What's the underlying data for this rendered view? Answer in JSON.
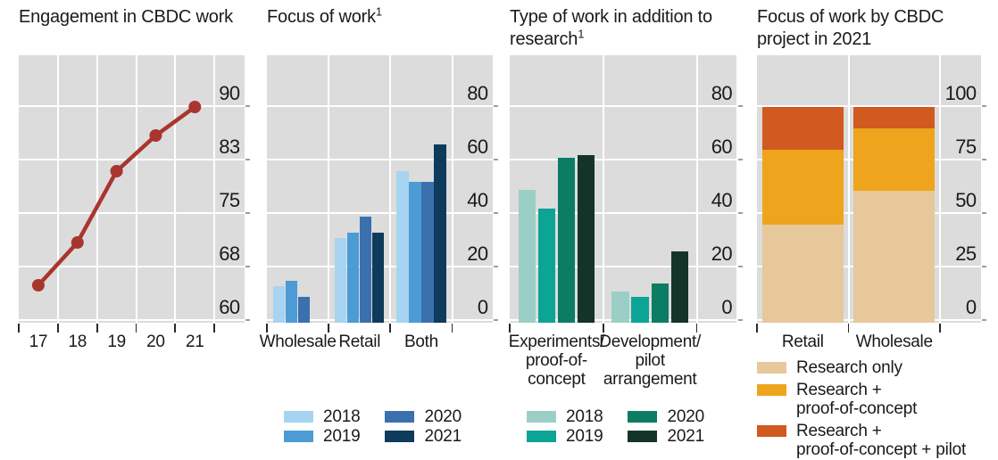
{
  "styles": {
    "plot_background": "#dcdcdc",
    "gridline_color": "#ffffff",
    "text_color": "#1a1a1a",
    "bottom_tick_color": "#2a2a2a",
    "right_tick_color": "#9e9e9e"
  },
  "chart_data": [
    {
      "type": "line",
      "title": "Engagement in CBDC work",
      "categories": [
        "17",
        "18",
        "19",
        "20",
        "21"
      ],
      "values": [
        65,
        71,
        81,
        86,
        90
      ],
      "line_color": "#a9352f",
      "marker": "circle",
      "grid": true,
      "yticks": [
        {
          "label": "90",
          "value": 90
        },
        {
          "label": "83",
          "value": 82.5
        },
        {
          "label": "75",
          "value": 75
        },
        {
          "label": "68",
          "value": 67.5
        },
        {
          "label": "60",
          "value": 60
        }
      ],
      "ylim": [
        60,
        97.5
      ]
    },
    {
      "type": "bar",
      "title": "Focus of work",
      "title_sup": "1",
      "categories": [
        "Wholesale",
        "Retail",
        "Both"
      ],
      "series": [
        {
          "name": "2018",
          "color": "#a7d4f0",
          "values": [
            13,
            31,
            56
          ]
        },
        {
          "name": "2019",
          "color": "#4c9bd5",
          "values": [
            15,
            33,
            52
          ]
        },
        {
          "name": "2020",
          "color": "#3b70ae",
          "values": [
            9,
            39,
            52
          ]
        },
        {
          "name": "2021",
          "color": "#0e3a5c",
          "values": [
            0,
            33,
            66
          ]
        }
      ],
      "grid": true,
      "legend_position": "bottom",
      "yticks": [
        {
          "label": "80",
          "value": 80
        },
        {
          "label": "60",
          "value": 60
        },
        {
          "label": "40",
          "value": 40
        },
        {
          "label": "20",
          "value": 20
        },
        {
          "label": "0",
          "value": 0
        }
      ],
      "ylim": [
        0,
        98
      ]
    },
    {
      "type": "bar",
      "title": "Type of work in addition to research",
      "title_sup": "1",
      "categories": [
        "Experiments/\nproof-of-\nconcept",
        "Development/\npilot\narrangement"
      ],
      "series": [
        {
          "name": "2018",
          "color": "#9bcfc5",
          "values": [
            49,
            11
          ]
        },
        {
          "name": "2019",
          "color": "#0ca495",
          "values": [
            42,
            9
          ]
        },
        {
          "name": "2020",
          "color": "#0c7c64",
          "values": [
            61,
            14
          ]
        },
        {
          "name": "2021",
          "color": "#14342a",
          "values": [
            62,
            26
          ]
        }
      ],
      "grid": true,
      "legend_position": "bottom",
      "yticks": [
        {
          "label": "80",
          "value": 80
        },
        {
          "label": "60",
          "value": 60
        },
        {
          "label": "40",
          "value": 40
        },
        {
          "label": "20",
          "value": 20
        },
        {
          "label": "0",
          "value": 0
        }
      ],
      "ylim": [
        0,
        98
      ]
    },
    {
      "type": "stacked-bar",
      "title": "Focus of work by CBDC project in 2021",
      "categories": [
        "Retail",
        "Wholesale"
      ],
      "series": [
        {
          "name": "Research only",
          "color": "#e6c89b",
          "values": [
            45,
            61
          ]
        },
        {
          "name": "Research +\nproof-of-concept",
          "color": "#efa41d",
          "values": [
            35,
            29
          ]
        },
        {
          "name": "Research +\nproof-of-concept + pilot",
          "color": "#d05a1f",
          "values": [
            20,
            10
          ]
        }
      ],
      "grid": true,
      "legend_position": "bottom",
      "yticks": [
        {
          "label": "100",
          "value": 100
        },
        {
          "label": "75",
          "value": 75
        },
        {
          "label": "50",
          "value": 50
        },
        {
          "label": "25",
          "value": 25
        },
        {
          "label": "0",
          "value": 0
        }
      ],
      "ylim": [
        0,
        124
      ]
    }
  ]
}
